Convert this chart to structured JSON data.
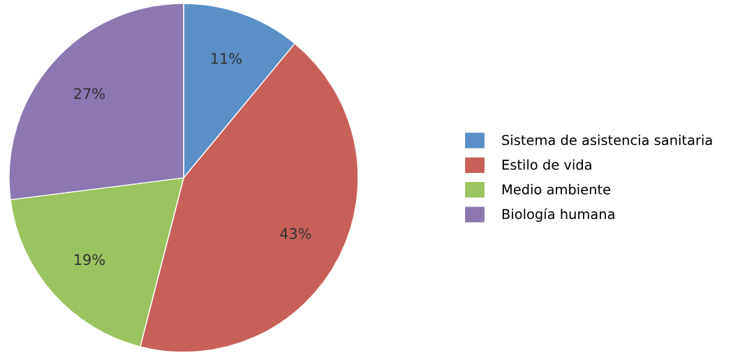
{
  "chart_data": {
    "type": "pie",
    "categories": [
      "Sistema de asistencia sanitaria",
      "Estilo de vida",
      "Medio ambiente",
      "Biología humana"
    ],
    "values": [
      11,
      43,
      19,
      27
    ],
    "value_labels": [
      "11%",
      "43%",
      "19%",
      "27%"
    ],
    "colors": [
      "#5b8fc8",
      "#c8605a",
      "#9bc35f",
      "#8c77b0"
    ],
    "legend": "right"
  }
}
